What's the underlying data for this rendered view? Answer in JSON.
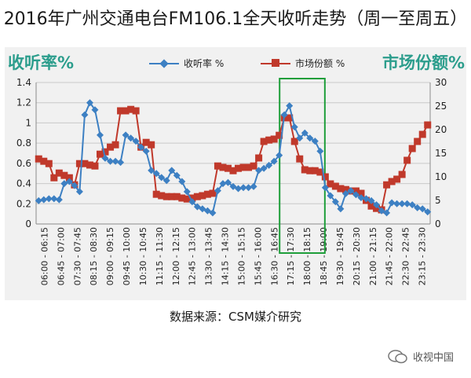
{
  "title": "2016年广州交通电台FM106.1全天收听走势（周一至周五）",
  "source": "数据来源：CSM媒介研究",
  "watermark": "收视中国",
  "colors": {
    "series1": "#3d80c3",
    "series2": "#c0392b",
    "highlight": "#1e9e3a",
    "axis_title": "#2b9d8c"
  },
  "chart_data": {
    "type": "line",
    "left_axis_title": "收听率%",
    "right_axis_title": "市场份额%",
    "y_left_range": [
      0,
      1.4
    ],
    "y_left_ticks": [
      "0",
      "0.2",
      "0.4",
      "0.6",
      "0.8",
      "1",
      "1.2",
      "1.4"
    ],
    "y_right_range": [
      0,
      30
    ],
    "y_right_ticks": [
      "0",
      "5",
      "10",
      "15",
      "20",
      "25",
      "30"
    ],
    "x_tick_labels": [
      "06:00 - 06:15",
      "06:45 - 07:00",
      "07:30 - 07:45",
      "08:15 - 08:30",
      "09:00 - 09:15",
      "09:45 - 10:00",
      "10:30 - 10:45",
      "11:15 - 11:30",
      "12:00 - 12:15",
      "12:45 - 13:00",
      "13:30 - 13:45",
      "14:15 - 14:30",
      "15:00 - 15:15",
      "15:45 - 16:00",
      "16:30 - 16:45",
      "17:15 - 17:30",
      "18:00 - 18:15",
      "18:45 - 19:00",
      "19:30 - 19:45",
      "20:15 - 20:30",
      "21:00 - 21:15",
      "21:45 - 22:00",
      "22:30 - 22:45",
      "23:15 - 23:30"
    ],
    "highlight_range": [
      "17:00",
      "18:45"
    ],
    "series": [
      {
        "name": "收听率 %",
        "axis": "left",
        "values": [
          0.23,
          0.24,
          0.25,
          0.25,
          0.24,
          0.4,
          0.42,
          0.38,
          0.32,
          1.08,
          1.2,
          1.13,
          0.88,
          0.65,
          0.62,
          0.62,
          0.61,
          0.88,
          0.85,
          0.82,
          0.76,
          0.72,
          0.53,
          0.5,
          0.46,
          0.43,
          0.53,
          0.48,
          0.42,
          0.32,
          0.22,
          0.17,
          0.15,
          0.13,
          0.11,
          0.33,
          0.4,
          0.41,
          0.37,
          0.35,
          0.36,
          0.36,
          0.37,
          0.53,
          0.55,
          0.58,
          0.62,
          0.68,
          1.08,
          1.17,
          0.96,
          0.85,
          0.9,
          0.85,
          0.82,
          0.72,
          0.36,
          0.28,
          0.22,
          0.15,
          0.3,
          0.33,
          0.29,
          0.26,
          0.25,
          0.23,
          0.19,
          0.13,
          0.11,
          0.21,
          0.2,
          0.2,
          0.2,
          0.19,
          0.16,
          0.15,
          0.12
        ]
      },
      {
        "name": "市场份额 %",
        "axis": "right",
        "values": [
          13.8,
          13.3,
          12.8,
          9.8,
          10.8,
          10.3,
          9.8,
          8.3,
          12.8,
          12.8,
          12.5,
          12.3,
          14.8,
          15.3,
          16.3,
          16.8,
          24.0,
          24.0,
          24.3,
          24.0,
          16.3,
          17.3,
          16.8,
          6.3,
          6.0,
          5.8,
          5.8,
          5.8,
          5.5,
          5.3,
          5.5,
          5.8,
          6.0,
          6.3,
          6.5,
          12.3,
          12.0,
          11.8,
          11.3,
          11.8,
          12.0,
          12.0,
          12.3,
          14.0,
          17.5,
          17.8,
          18.0,
          18.8,
          22.5,
          22.5,
          17.5,
          13.8,
          11.5,
          11.3,
          11.3,
          11.0,
          10.0,
          8.5,
          8.0,
          7.5,
          7.3,
          7.0,
          7.0,
          6.5,
          5.0,
          3.8,
          3.3,
          3.0,
          8.3,
          9.0,
          9.5,
          10.5,
          13.5,
          16.0,
          17.5,
          19.0,
          21.0
        ]
      }
    ]
  }
}
